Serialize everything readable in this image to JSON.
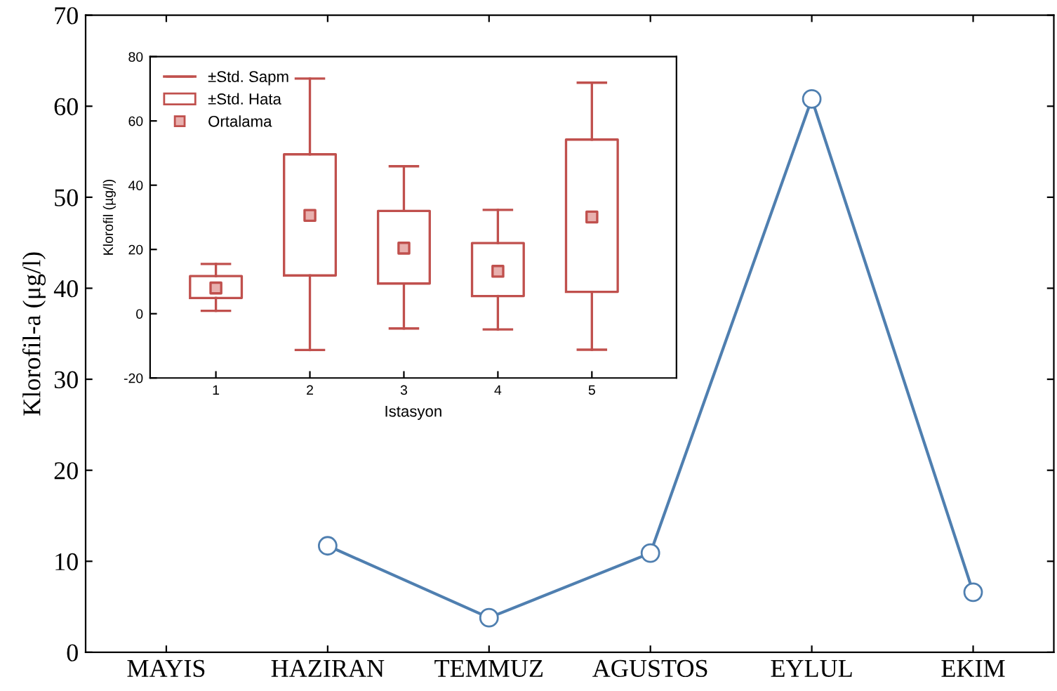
{
  "chart_data": [
    {
      "type": "line",
      "ylabel": "Klorofil-a (μg/l)",
      "categories": [
        "MAYIS",
        "HAZIRAN",
        "TEMMUZ",
        "AGUSTOS",
        "EYLUL",
        "EKIM"
      ],
      "series": [
        {
          "color": "#4f7fb0",
          "values": [
            null,
            11.7,
            3.8,
            10.9,
            60.8,
            6.6
          ]
        }
      ],
      "ylim": [
        0,
        70
      ],
      "yticks": [
        0,
        10,
        20,
        30,
        40,
        50,
        60,
        70
      ],
      "marker": "circle",
      "line_style": "solid",
      "grid": false,
      "legend": false
    },
    {
      "type": "box",
      "xlabel": "Istasyon",
      "ylabel": "Klorofil (µg/l)",
      "categories": [
        "1",
        "2",
        "3",
        "4",
        "5"
      ],
      "series": [
        {
          "name": "Ortalama",
          "color": "#c0504d",
          "boxes": [
            {
              "low": 0.9,
              "q1": 4.9,
              "q3": 11.7,
              "high": 15.5,
              "mean": 8.0
            },
            {
              "low": -11.3,
              "q1": 11.9,
              "q3": 49.6,
              "high": 73.2,
              "mean": 30.6
            },
            {
              "low": -4.6,
              "q1": 9.4,
              "q3": 32.0,
              "high": 45.9,
              "mean": 20.4
            },
            {
              "low": -4.9,
              "q1": 5.5,
              "q3": 22.0,
              "high": 32.3,
              "mean": 13.2
            },
            {
              "low": -11.2,
              "q1": 6.8,
              "q3": 54.2,
              "high": 71.9,
              "mean": 30.1
            }
          ]
        }
      ],
      "annotations": [
        "±Std. Sapm",
        "±Std. Hata"
      ],
      "ylim": [
        -20,
        80
      ],
      "yticks": [
        -20,
        0,
        20,
        40,
        60,
        80
      ],
      "grid": false,
      "legend": "top left"
    }
  ]
}
